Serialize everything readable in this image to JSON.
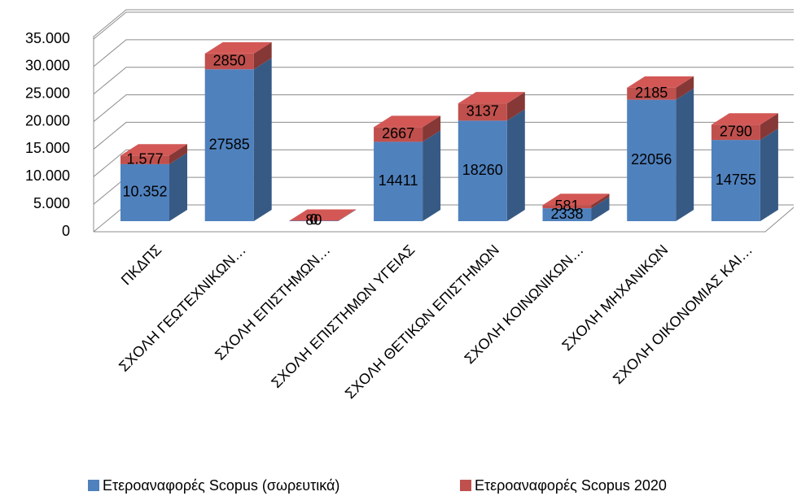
{
  "chart_data": {
    "type": "bar3d_stacked",
    "categories": [
      "ΠΚΔΠΣ",
      "ΣΧΟΛΗ ΓΕΩΤΕΧΝΙΚΩΝ…",
      "ΣΧΟΛΗ ΕΠΙΣΤΗΜΩΝ…",
      "ΣΧΟΛΗ ΕΠΙΣΤΗΜΩΝ ΥΓΕΙΑΣ",
      "ΣΧΟΛΗ ΘΕΤΙΚΩΝ ΕΠΙΣΤΗΜΩΝ",
      "ΣΧΟΛΗ ΚΟΙΝΩΝΙΚΩΝ…",
      "ΣΧΟΛΗ ΜΗΧΑΝΙΚΩΝ",
      "ΣΧΟΛΗ ΟΙΚΟΝΟΜΙΑΣ ΚΑΙ…"
    ],
    "series": [
      {
        "name": "Ετεροαναφορές Scopus (σωρευτικά)",
        "color": "#4f81bd",
        "values": [
          10352,
          27585,
          80,
          14411,
          18260,
          2338,
          22056,
          14755
        ],
        "value_labels": [
          "10.352",
          "27585",
          "80",
          "14411",
          "18260",
          "2338",
          "22056",
          "14755"
        ]
      },
      {
        "name": "Ετεροαναφορές Scopus 2020",
        "color": "#c0504d",
        "values": [
          1577,
          2850,
          0,
          2667,
          3137,
          581,
          2185,
          2790
        ],
        "value_labels": [
          "1.577",
          "2850",
          "0",
          "2667",
          "3137",
          "581",
          "2185",
          "2790"
        ]
      }
    ],
    "ylim": [
      0,
      35000
    ],
    "yticks": [
      0,
      {
        "value": 5000,
        "label": "5.000"
      },
      {
        "value": 10000,
        "label": "10.000"
      },
      {
        "value": 15000,
        "label": "15.000"
      },
      {
        "value": 20000,
        "label": "20.000"
      },
      {
        "value": 25000,
        "label": "25.000"
      },
      {
        "value": 30000,
        "label": "30.000"
      },
      {
        "value": 35000,
        "label": "35.000"
      }
    ],
    "grid": true,
    "legend": "bottom"
  }
}
